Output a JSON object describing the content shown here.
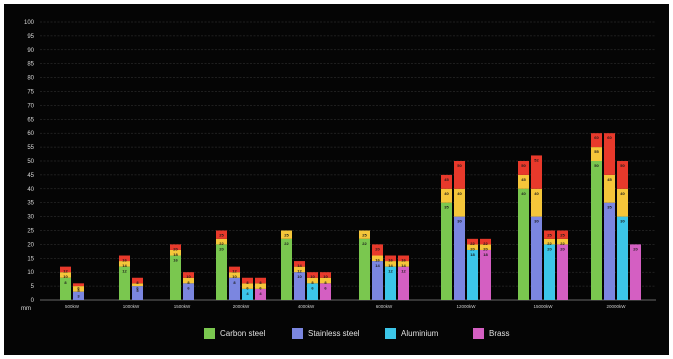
{
  "chart_data": {
    "type": "bar",
    "stacked": true,
    "title": "",
    "xlabel": "",
    "ylabel": "",
    "y_unit_label": "mm",
    "ylim": [
      0,
      100
    ],
    "yticks": [
      0,
      5,
      10,
      15,
      20,
      25,
      30,
      35,
      40,
      45,
      50,
      55,
      60,
      65,
      70,
      75,
      80,
      85,
      90,
      95,
      100
    ],
    "grid": true,
    "legend_position": "bottom",
    "categories": [
      "500kW",
      "1000kW",
      "1500kW",
      "2000kW",
      "4000kW",
      "6000kW",
      "12000kW",
      "15000kW",
      "20000kW"
    ],
    "materials": [
      {
        "name": "Carbon steel",
        "color": "#7ac74f"
      },
      {
        "name": "Stainless steel",
        "color": "#7b86e0"
      },
      {
        "name": "Aluminium",
        "color": "#3cc6e8"
      },
      {
        "name": "Brass",
        "color": "#d45fc2"
      }
    ],
    "segment_colors": {
      "cutting": "",
      "quality": "#f5c63a",
      "max": "#e8392b"
    },
    "groups": [
      {
        "category": "500kW",
        "bars": [
          {
            "material": "Carbon steel",
            "segments": [
              8,
              10,
              12
            ]
          },
          {
            "material": "Stainless steel",
            "segments": [
              3,
              5,
              6
            ]
          }
        ]
      },
      {
        "category": "1000kW",
        "bars": [
          {
            "material": "Carbon steel",
            "segments": [
              12,
              14,
              16
            ]
          },
          {
            "material": "Stainless steel",
            "segments": [
              5,
              6,
              8
            ]
          }
        ]
      },
      {
        "category": "1500kW",
        "bars": [
          {
            "material": "Carbon steel",
            "segments": [
              16,
              18,
              20
            ]
          },
          {
            "material": "Stainless steel",
            "segments": [
              6,
              8,
              10
            ]
          }
        ]
      },
      {
        "category": "2000kW",
        "bars": [
          {
            "material": "Carbon steel",
            "segments": [
              20,
              22,
              25
            ]
          },
          {
            "material": "Stainless steel",
            "segments": [
              8,
              10,
              12
            ]
          },
          {
            "material": "Aluminium",
            "segments": [
              4,
              6,
              8
            ]
          },
          {
            "material": "Brass",
            "segments": [
              4,
              6,
              8
            ]
          }
        ]
      },
      {
        "category": "4000kW",
        "bars": [
          {
            "material": "Carbon steel",
            "segments": [
              22,
              25,
              25
            ]
          },
          {
            "material": "Stainless steel",
            "segments": [
              10,
              12,
              14
            ]
          },
          {
            "material": "Aluminium",
            "segments": [
              6,
              8,
              10
            ]
          },
          {
            "material": "Brass",
            "segments": [
              6,
              8,
              10
            ]
          }
        ]
      },
      {
        "category": "6000kW",
        "bars": [
          {
            "material": "Carbon steel",
            "segments": [
              22,
              25,
              25
            ]
          },
          {
            "material": "Stainless steel",
            "segments": [
              14,
              16,
              20
            ]
          },
          {
            "material": "Aluminium",
            "segments": [
              12,
              14,
              16
            ]
          },
          {
            "material": "Brass",
            "segments": [
              12,
              14,
              16
            ]
          }
        ]
      },
      {
        "category": "12000kW",
        "bars": [
          {
            "material": "Carbon steel",
            "segments": [
              35,
              40,
              45
            ]
          },
          {
            "material": "Stainless steel",
            "segments": [
              30,
              40,
              50
            ]
          },
          {
            "material": "Aluminium",
            "segments": [
              18,
              20,
              22
            ]
          },
          {
            "material": "Brass",
            "segments": [
              18,
              20,
              22
            ]
          }
        ]
      },
      {
        "category": "15000kW",
        "bars": [
          {
            "material": "Carbon steel",
            "segments": [
              40,
              45,
              50
            ]
          },
          {
            "material": "Stainless steel",
            "segments": [
              30,
              40,
              52
            ]
          },
          {
            "material": "Aluminium",
            "segments": [
              20,
              22,
              25
            ]
          },
          {
            "material": "Brass",
            "segments": [
              20,
              22,
              25
            ]
          }
        ]
      },
      {
        "category": "20000kW",
        "bars": [
          {
            "material": "Carbon steel",
            "segments": [
              50,
              55,
              60
            ]
          },
          {
            "material": "Stainless steel",
            "segments": [
              35,
              45,
              60
            ]
          },
          {
            "material": "Aluminium",
            "segments": [
              30,
              40,
              50
            ]
          },
          {
            "material": "Brass",
            "segments": [
              20,
              20,
              20
            ]
          }
        ]
      }
    ]
  }
}
